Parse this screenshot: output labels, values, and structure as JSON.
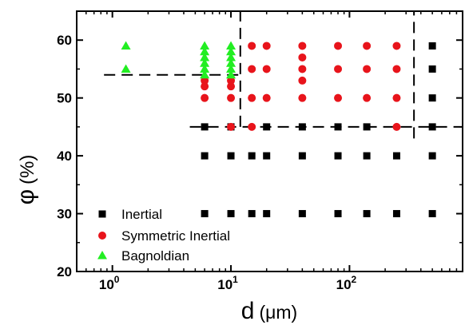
{
  "chart_data": {
    "type": "scatter",
    "xscale": "log",
    "xlim": [
      0.5,
      900
    ],
    "ylim": [
      20,
      65
    ],
    "x_ticks": [
      {
        "value": 1,
        "base": "10",
        "exp": "0"
      },
      {
        "value": 10,
        "base": "10",
        "exp": "1"
      },
      {
        "value": 100,
        "base": "10",
        "exp": "2"
      }
    ],
    "y_ticks": [
      "20",
      "30",
      "40",
      "50",
      "60"
    ],
    "xlabel": {
      "main": "d",
      "unit": "(μm)"
    },
    "ylabel": {
      "main": "φ",
      "unit": "(%)"
    },
    "legend_position": "bottom-left",
    "series": [
      {
        "name": "Inertial",
        "marker": "square",
        "color": "#000000",
        "points": [
          [
            6,
            30
          ],
          [
            6,
            40
          ],
          [
            6,
            45
          ],
          [
            10,
            30
          ],
          [
            10,
            40
          ],
          [
            10,
            45
          ],
          [
            15,
            30
          ],
          [
            15,
            40
          ],
          [
            20,
            30
          ],
          [
            20,
            40
          ],
          [
            20,
            45
          ],
          [
            40,
            30
          ],
          [
            40,
            40
          ],
          [
            40,
            45
          ],
          [
            80,
            30
          ],
          [
            80,
            40
          ],
          [
            80,
            45
          ],
          [
            140,
            30
          ],
          [
            140,
            40
          ],
          [
            140,
            45
          ],
          [
            250,
            30
          ],
          [
            250,
            40
          ],
          [
            500,
            30
          ],
          [
            500,
            40
          ],
          [
            500,
            45
          ],
          [
            500,
            50
          ],
          [
            500,
            55
          ],
          [
            500,
            59
          ]
        ]
      },
      {
        "name": "Symmetric Inertial",
        "marker": "circle",
        "color": "#e8141b",
        "points": [
          [
            6,
            50
          ],
          [
            6,
            52
          ],
          [
            6,
            53
          ],
          [
            10,
            45
          ],
          [
            10,
            50
          ],
          [
            10,
            52
          ],
          [
            10,
            53
          ],
          [
            15,
            45
          ],
          [
            15,
            50
          ],
          [
            15,
            55
          ],
          [
            15,
            59
          ],
          [
            20,
            50
          ],
          [
            20,
            55
          ],
          [
            20,
            59
          ],
          [
            40,
            50
          ],
          [
            40,
            53
          ],
          [
            40,
            55
          ],
          [
            40,
            57
          ],
          [
            40,
            59
          ],
          [
            80,
            50
          ],
          [
            80,
            55
          ],
          [
            80,
            59
          ],
          [
            140,
            50
          ],
          [
            140,
            55
          ],
          [
            140,
            59
          ],
          [
            250,
            45
          ],
          [
            250,
            50
          ],
          [
            250,
            55
          ],
          [
            250,
            59
          ]
        ]
      },
      {
        "name": "Bagnoldian",
        "marker": "triangle",
        "color": "#22ee22",
        "points": [
          [
            1.3,
            55
          ],
          [
            1.3,
            59
          ],
          [
            6,
            54
          ],
          [
            6,
            55
          ],
          [
            6,
            56
          ],
          [
            6,
            57
          ],
          [
            6,
            58
          ],
          [
            6,
            59
          ],
          [
            10,
            54
          ],
          [
            10,
            55
          ],
          [
            10,
            56
          ],
          [
            10,
            57
          ],
          [
            10,
            58
          ],
          [
            10,
            59
          ]
        ]
      }
    ],
    "reference_lines": [
      {
        "orientation": "vertical",
        "x": 12,
        "y_range": [
          45,
          65
        ]
      },
      {
        "orientation": "vertical",
        "x": 350,
        "y_range": [
          43,
          65
        ]
      },
      {
        "orientation": "horizontal",
        "y": 54,
        "x_range": [
          0.85,
          13
        ]
      },
      {
        "orientation": "horizontal",
        "y": 45,
        "x_range": [
          4.5,
          900
        ]
      }
    ]
  }
}
